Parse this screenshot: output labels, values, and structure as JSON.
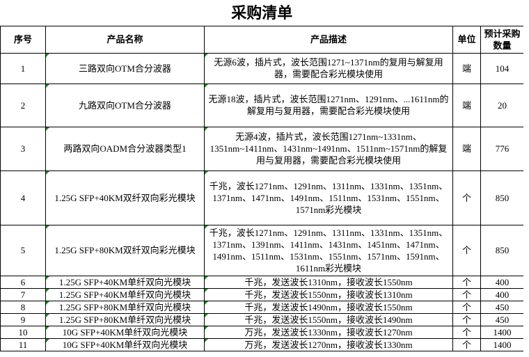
{
  "title": "采购清单",
  "headers": [
    "序号",
    "产品名称",
    "产品描述",
    "单位",
    "预计采购数量"
  ],
  "rows": [
    {
      "no": "1",
      "name": "三路双向OTM合分波器",
      "desc": "无源6波，插片式，波长范围1271~1371nm的复用与解复用器，需要配合彩光模块使用",
      "unit": "端",
      "qty": "104"
    },
    {
      "no": "2",
      "name": "九路双向OTM合分波器",
      "desc": "无源18波，插片式，波长范围1271nm、1291nm、...1611nm的解复用与复用器，需要配合彩光模块使用",
      "unit": "端",
      "qty": "20"
    },
    {
      "no": "3",
      "name": "两路双向OADM合分波器类型1",
      "desc": "无源4波，插片式，波长范围1271nm~1331nm、1351nm~1411nm、1431nm~1491nm、1511nm~1571nm的解复用与复用器，需要配合彩光模块使用",
      "unit": "端",
      "qty": "776"
    },
    {
      "no": "4",
      "name": "1.25G SFP+40KM双纤双向彩光模块",
      "desc": "千兆，波长1271nm、1291nm、1311nm、1331nm、1351nm、1371nm、1471nm、1491nm、1511nm、1531nm、1551nm、1571nm彩光模块",
      "unit": "个",
      "qty": "850"
    },
    {
      "no": "5",
      "name": "1.25G SFP+80KM双纤双向彩光模块",
      "desc": "千兆，波长1271nm、1291nm、1311nm、1331nm、1351nm、1371nm、1391nm、1411nm、1431nm、1451nm、1471nm、1491nm、1511nm、1531nm、1551nm、1571nm、1591nm、1611nm彩光模块",
      "unit": "个",
      "qty": "850"
    },
    {
      "no": "6",
      "name": "1.25G SFP+40KM单纤双向光模块",
      "desc": "千兆，发送波长1310nm，接收波长1550nm",
      "unit": "个",
      "qty": "400"
    },
    {
      "no": "7",
      "name": "1.25G SFP+40KM单纤双向光模块",
      "desc": "千兆，发送波长1550nm，接收波长1310nm",
      "unit": "个",
      "qty": "400"
    },
    {
      "no": "8",
      "name": "1.25G SFP+80KM单纤双向光模块",
      "desc": "千兆，发送波长1490nm，接收波长1550nm",
      "unit": "个",
      "qty": "450"
    },
    {
      "no": "9",
      "name": "1.25G SFP+80KM单纤双向光模块",
      "desc": "千兆，发送波长1550nm，接收波长1490nm",
      "unit": "个",
      "qty": "450"
    },
    {
      "no": "10",
      "name": "10G SFP+40KM单纤双向光模块",
      "desc": "万兆，发送波长1330nm，接收波长1270nm",
      "unit": "个",
      "qty": "1400"
    },
    {
      "no": "11",
      "name": "10G SFP+40KM单纤双向光模块",
      "desc": "万兆，发送波长1270nm，接收波长1330nm",
      "unit": "个",
      "qty": "1400"
    }
  ]
}
